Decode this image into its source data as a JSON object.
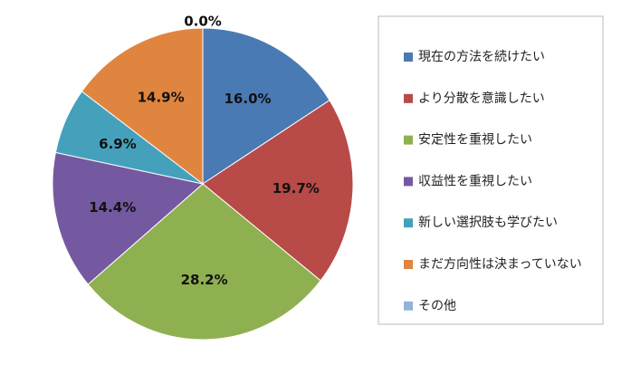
{
  "chart_data": {
    "type": "pie",
    "categories": [
      "現在の方法を続けたい",
      "より分散を意識したい",
      "安定性を重視したい",
      "収益性を重視したい",
      "新しい選択肢も学びたい",
      "まだ方向性は決まっていない",
      "その他"
    ],
    "values": [
      16.0,
      19.7,
      28.2,
      14.4,
      6.9,
      14.9,
      0.0
    ],
    "value_labels": [
      "16.0%",
      "19.7%",
      "28.2%",
      "14.4%",
      "6.9%",
      "14.9%",
      "0.0%"
    ],
    "colors": [
      "#4a7ab4",
      "#b84a47",
      "#8fb050",
      "#7459a0",
      "#45a1bb",
      "#e0853f",
      "#92b2d9"
    ],
    "legend": "right"
  }
}
